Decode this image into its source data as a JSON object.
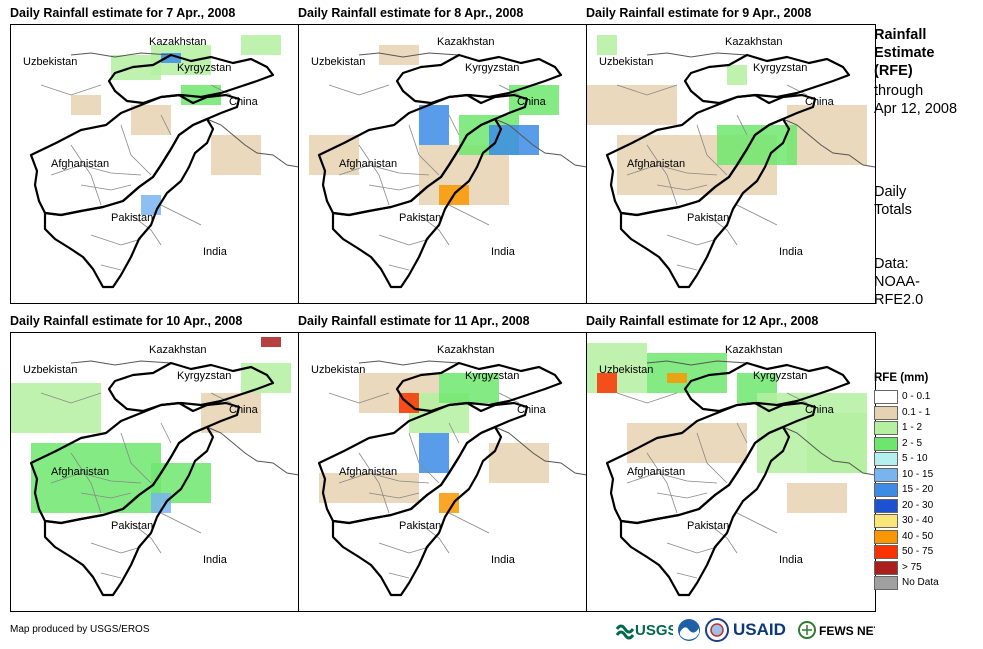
{
  "panels": [
    {
      "title": "Daily Rainfall estimate for 7 Apr., 2008"
    },
    {
      "title": "Daily Rainfall estimate for 8 Apr., 2008"
    },
    {
      "title": "Daily Rainfall estimate for 9 Apr., 2008"
    },
    {
      "title": "Daily Rainfall estimate for 10 Apr., 2008"
    },
    {
      "title": "Daily Rainfall estimate for 11 Apr., 2008"
    },
    {
      "title": "Daily Rainfall estimate for 12 Apr., 2008"
    }
  ],
  "map_labels": {
    "kazakhstan": "Kazakhstan",
    "uzbekistan": "Uzbekistan",
    "kyrgyzstan": "Kyrgyzstan",
    "china": "China",
    "afghanistan": "Afghanistan",
    "pakistan": "Pakistan",
    "india": "India"
  },
  "sidebar": {
    "title_line1": "Rainfall",
    "title_line2": "Estimate",
    "title_line3": "(RFE)",
    "through": "through",
    "date": "Apr 12, 2008",
    "totals1": "Daily",
    "totals2": "Totals",
    "data1": "Data:",
    "data2": "NOAA-",
    "data3": "RFE2.0"
  },
  "legend": {
    "title": "RFE (mm)",
    "items": [
      {
        "label": "0 - 0.1",
        "color": "#ffffff"
      },
      {
        "label": "0.1 - 1",
        "color": "#e6d2b0"
      },
      {
        "label": "1 - 2",
        "color": "#b4f0a0"
      },
      {
        "label": "2 - 5",
        "color": "#6ee66e"
      },
      {
        "label": "5 - 10",
        "color": "#b4f0f0"
      },
      {
        "label": "10 - 15",
        "color": "#78b4f0"
      },
      {
        "label": "15 - 20",
        "color": "#3c8ce6"
      },
      {
        "label": "20 - 30",
        "color": "#1e50d2"
      },
      {
        "label": "30 - 40",
        "color": "#fae678"
      },
      {
        "label": "40 - 50",
        "color": "#fa9600"
      },
      {
        "label": "50 - 75",
        "color": "#fa3200"
      },
      {
        "label": "> 75",
        "color": "#aa1e1e"
      },
      {
        "label": "No Data",
        "color": "#a0a0a0"
      }
    ]
  },
  "footer": {
    "credit": "Map produced by USGS/EROS"
  },
  "logos": {
    "usgs": "USGS",
    "usaid": "USAID",
    "fewsnet": "FEWS NET"
  }
}
